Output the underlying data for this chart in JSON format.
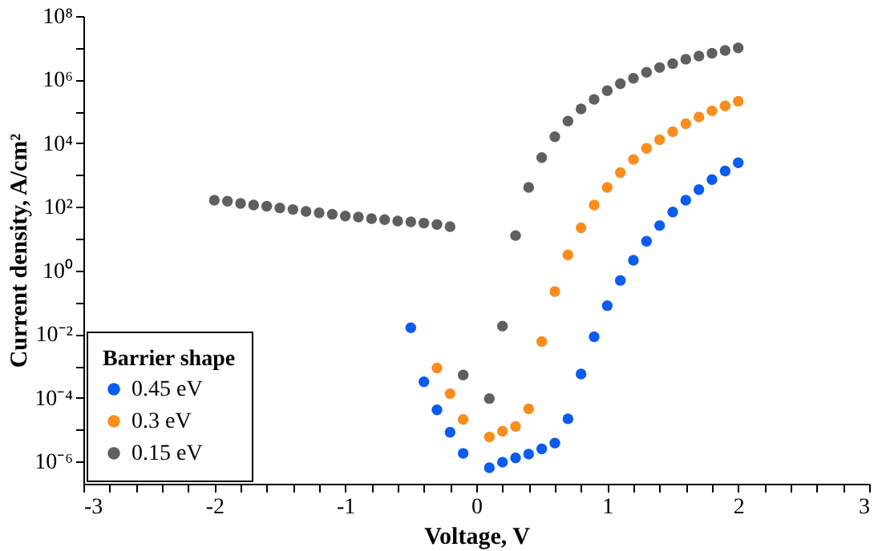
{
  "chart_data": {
    "type": "scatter",
    "xlabel": "Voltage, V",
    "ylabel": "Current density, A/cm²",
    "legend_title": "Barrier shape",
    "legend": "bottom left",
    "marker": "circle",
    "log": "y",
    "xlim": [
      -3,
      3
    ],
    "ylim": [
      2e-07,
      100000000.0
    ],
    "xticks": [
      -3,
      {
        "value": -2.8,
        "label": null
      },
      {
        "value": -2.6,
        "label": null
      },
      {
        "value": -2.4,
        "label": null
      },
      {
        "value": -2.2,
        "label": null
      },
      -2,
      {
        "value": -1.8,
        "label": null
      },
      {
        "value": -1.6,
        "label": null
      },
      {
        "value": -1.4,
        "label": null
      },
      {
        "value": -1.2,
        "label": null
      },
      -1,
      {
        "value": -0.8,
        "label": null
      },
      {
        "value": -0.6,
        "label": null
      },
      {
        "value": -0.4,
        "label": null
      },
      {
        "value": -0.2,
        "label": null
      },
      0,
      {
        "value": 0.2,
        "label": null
      },
      {
        "value": 0.4,
        "label": null
      },
      {
        "value": 0.6,
        "label": null
      },
      {
        "value": 0.8,
        "label": null
      },
      1,
      {
        "value": 1.2,
        "label": null
      },
      {
        "value": 1.4,
        "label": null
      },
      {
        "value": 1.6,
        "label": null
      },
      {
        "value": 1.8,
        "label": null
      },
      2,
      {
        "value": 2.2,
        "label": null
      },
      {
        "value": 2.4,
        "label": null
      },
      {
        "value": 2.6,
        "label": null
      },
      {
        "value": 2.8,
        "label": null
      },
      3
    ],
    "yticks": [
      {
        "value": 1e-06,
        "label": "10⁻⁶"
      },
      {
        "value": 1e-05,
        "label": null
      },
      {
        "value": 0.0001,
        "label": "10⁻⁴"
      },
      {
        "value": 0.001,
        "label": null
      },
      {
        "value": 0.01,
        "label": "10⁻²"
      },
      {
        "value": 0.1,
        "label": null
      },
      {
        "value": 1,
        "label": "10⁰"
      },
      {
        "value": 10,
        "label": null
      },
      {
        "value": 100,
        "label": "10²"
      },
      {
        "value": 1000,
        "label": null
      },
      {
        "value": 10000,
        "label": "10⁴"
      },
      {
        "value": 100000,
        "label": null
      },
      {
        "value": 1000000,
        "label": "10⁶"
      },
      {
        "value": 10000000,
        "label": null
      },
      {
        "value": 100000000,
        "label": "10⁸"
      }
    ],
    "series": [
      {
        "name": "0.45 eV",
        "color": "#0a5cf0",
        "x": [
          -0.5,
          -0.4,
          -0.3,
          -0.2,
          -0.1,
          0.1,
          0.2,
          0.3,
          0.4,
          0.5,
          0.6,
          0.7,
          0.8,
          0.9,
          1.0,
          1.1,
          1.2,
          1.3,
          1.4,
          1.5,
          1.6,
          1.7,
          1.8,
          1.9,
          2.0
        ],
        "values": [
          0.016,
          0.00032,
          4.2e-05,
          8.3e-06,
          1.8e-06,
          6.4e-07,
          9.5e-07,
          1.3e-06,
          1.7e-06,
          2.5e-06,
          3.8e-06,
          2.2e-05,
          0.00056,
          0.0083,
          0.079,
          0.49,
          2.1,
          8.3,
          26,
          69,
          162,
          350,
          720,
          1350,
          2450
        ]
      },
      {
        "name": "0.3 eV",
        "color": "#f98e1d",
        "x": [
          -0.3,
          -0.2,
          -0.1,
          0.1,
          0.2,
          0.3,
          0.4,
          0.5,
          0.6,
          0.7,
          0.8,
          0.9,
          1.0,
          1.1,
          1.2,
          1.3,
          1.4,
          1.5,
          1.6,
          1.7,
          1.8,
          1.9,
          2.0
        ],
        "values": [
          0.00087,
          0.000135,
          2.1e-05,
          5.9e-06,
          8.9e-06,
          1.26e-05,
          4.5e-05,
          0.0059,
          0.22,
          3.1,
          22,
          115,
          410,
          1200,
          3100,
          6900,
          13000,
          23000,
          41000,
          67000,
          105000,
          150000,
          210000
        ]
      },
      {
        "name": "0.15 eV",
        "color": "#5f5f5f",
        "x": [
          -2.0,
          -1.9,
          -1.8,
          -1.7,
          -1.6,
          -1.5,
          -1.4,
          -1.3,
          -1.2,
          -1.1,
          -1.0,
          -0.9,
          -0.8,
          -0.7,
          -0.6,
          -0.5,
          -0.4,
          -0.3,
          -0.2,
          -0.1,
          0.1,
          0.2,
          0.3,
          0.4,
          0.5,
          0.6,
          0.7,
          0.8,
          0.9,
          1.0,
          1.1,
          1.2,
          1.3,
          1.4,
          1.5,
          1.6,
          1.7,
          1.8,
          1.9,
          2.0
        ],
        "values": [
          162,
          151,
          129,
          115,
          105,
          93,
          83,
          72,
          65,
          59,
          52,
          48,
          43,
          40,
          36,
          34,
          31,
          28,
          24,
          0.00052,
          9.5e-05,
          0.018,
          12.6,
          410,
          3550,
          16000,
          50000,
          120000,
          240000,
          450000,
          750000,
          1100000,
          1700000,
          2400000,
          3200000,
          4400000,
          5500000,
          6800000,
          8300000,
          10000000
        ]
      }
    ]
  }
}
